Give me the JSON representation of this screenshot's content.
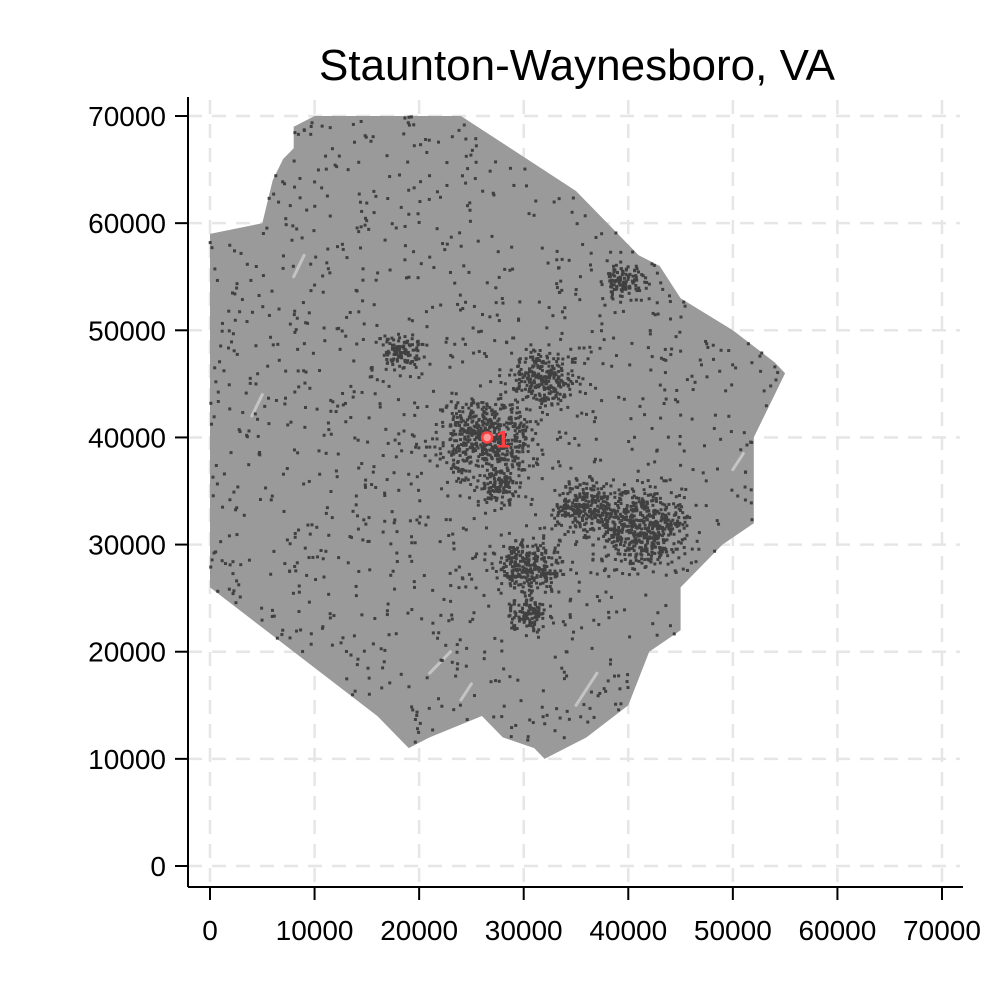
{
  "title": "Staunton-Waynesboro, VA",
  "x_ticks": [
    "0",
    "10000",
    "20000",
    "30000",
    "40000",
    "50000",
    "60000",
    "70000"
  ],
  "y_ticks": [
    "0",
    "10000",
    "20000",
    "30000",
    "40000",
    "50000",
    "60000",
    "70000"
  ],
  "chart_data": {
    "type": "scatter",
    "title": "Staunton-Waynesboro, VA",
    "xlabel": "",
    "ylabel": "",
    "xlim": [
      -2000,
      72000
    ],
    "ylim": [
      -2000,
      72000
    ],
    "grid": true,
    "colors": {
      "region": "#9a9a9a",
      "settlement": "#404040",
      "water": "#c4c4c4",
      "marker": "#ff4040"
    },
    "region_outline": [
      [
        5000,
        60000
      ],
      [
        6000,
        64000
      ],
      [
        7000,
        66000
      ],
      [
        8000,
        67000
      ],
      [
        8000,
        69000
      ],
      [
        10000,
        70000
      ],
      [
        24000,
        70000
      ],
      [
        35000,
        63000
      ],
      [
        41000,
        57000
      ],
      [
        43000,
        56000
      ],
      [
        45000,
        53000
      ],
      [
        50000,
        50000
      ],
      [
        54000,
        47000
      ],
      [
        55000,
        46000
      ],
      [
        54000,
        44000
      ],
      [
        52000,
        40000
      ],
      [
        52000,
        38000
      ],
      [
        52000,
        32000
      ],
      [
        49000,
        30000
      ],
      [
        45000,
        26000
      ],
      [
        45000,
        22000
      ],
      [
        42000,
        20000
      ],
      [
        40000,
        15000
      ],
      [
        36000,
        12000
      ],
      [
        32000,
        10000
      ],
      [
        31000,
        11000
      ],
      [
        28000,
        12000
      ],
      [
        26000,
        14000
      ],
      [
        21000,
        12000
      ],
      [
        19000,
        11000
      ],
      [
        18000,
        12000
      ],
      [
        16000,
        14000
      ],
      [
        8000,
        20000
      ],
      [
        0,
        26000
      ],
      [
        0,
        59000
      ]
    ],
    "settlement_clusters": [
      {
        "x": 26500,
        "y": 40000,
        "size": "large"
      },
      {
        "x": 32000,
        "y": 45500,
        "size": "medium"
      },
      {
        "x": 41500,
        "y": 31500,
        "size": "large"
      },
      {
        "x": 36000,
        "y": 33500,
        "size": "medium"
      },
      {
        "x": 30500,
        "y": 28000,
        "size": "medium"
      },
      {
        "x": 30500,
        "y": 23500,
        "size": "small"
      },
      {
        "x": 18500,
        "y": 48000,
        "size": "small"
      },
      {
        "x": 39500,
        "y": 54500,
        "size": "small"
      },
      {
        "x": 27500,
        "y": 35500,
        "size": "small"
      }
    ],
    "markers": [
      {
        "x": 26500,
        "y": 40000,
        "label": "1"
      }
    ]
  }
}
